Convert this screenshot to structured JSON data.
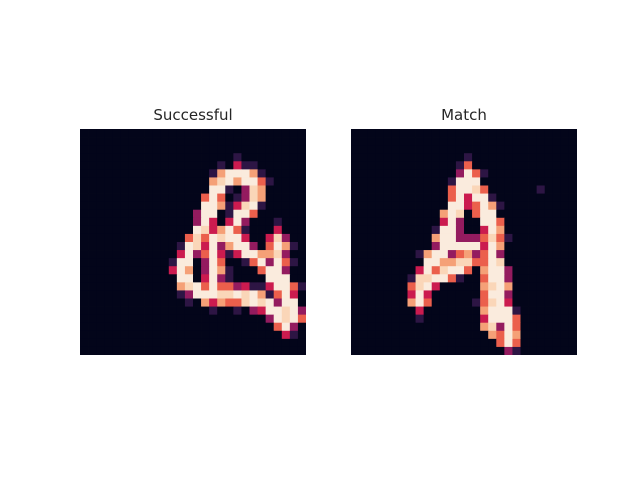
{
  "panels": [
    {
      "title": "Successful",
      "grid": {
        "rows": 28,
        "cols": 28,
        "strokes": [
          [
            [
              5,
              19
            ],
            [
              6,
              21
            ],
            [
              8,
              21
            ],
            [
              11,
              19
            ],
            [
              13,
              17
            ]
          ],
          [
            [
              5,
              19
            ],
            [
              6,
              17
            ],
            [
              8,
              16
            ],
            [
              11,
              15
            ],
            [
              13,
              14
            ],
            [
              15,
              13
            ],
            [
              17,
              12
            ]
          ],
          [
            [
              17,
              12
            ],
            [
              19,
              13
            ],
            [
              20,
              15
            ],
            [
              20,
              16
            ]
          ],
          [
            [
              20,
              16
            ],
            [
              20,
              19
            ],
            [
              21,
              22
            ],
            [
              23,
              25
            ],
            [
              24,
              25
            ]
          ],
          [
            [
              20,
              16
            ],
            [
              17,
              16
            ],
            [
              13,
              16
            ]
          ],
          [
            [
              13,
              16
            ],
            [
              13,
              18
            ],
            [
              15,
              21
            ],
            [
              17,
              23
            ],
            [
              19,
              24
            ]
          ],
          [
            [
              13,
              24
            ],
            [
              16,
              24
            ],
            [
              20,
              25
            ],
            [
              23,
              26
            ]
          ]
        ],
        "colors": [
          "#03051a",
          "#2d1544",
          "#5b1e51",
          "#941b5f",
          "#cb1b4f",
          "#eb5f4c",
          "#f5a077",
          "#fad6b8",
          "#faebdd"
        ]
      }
    },
    {
      "title": "Match",
      "grid": {
        "rows": 28,
        "cols": 28,
        "strokes": [
          [
            [
              5,
              14
            ],
            [
              8,
              13
            ],
            [
              11,
              12
            ],
            [
              14,
              11
            ],
            [
              17,
              9
            ],
            [
              19,
              8
            ],
            [
              21,
              8
            ]
          ],
          [
            [
              5,
              14
            ],
            [
              7,
              15
            ],
            [
              9,
              16
            ],
            [
              12,
              17
            ],
            [
              15,
              17
            ],
            [
              18,
              17
            ],
            [
              21,
              17
            ],
            [
              24,
              17
            ]
          ],
          [
            [
              12,
              17
            ],
            [
              15,
              17
            ],
            [
              18,
              18
            ],
            [
              21,
              18
            ],
            [
              24,
              19
            ],
            [
              26,
              19
            ]
          ],
          [
            [
              14,
              11
            ],
            [
              14,
              13
            ],
            [
              14,
              15
            ]
          ],
          [
            [
              19,
              8
            ],
            [
              18,
              10
            ],
            [
              17,
              12
            ],
            [
              16,
              14
            ]
          ]
        ],
        "colors": [
          "#03051a",
          "#2d1544",
          "#5b1e51",
          "#941b5f",
          "#cb1b4f",
          "#eb5f4c",
          "#f5a077",
          "#fad6b8",
          "#faebdd"
        ]
      }
    }
  ]
}
